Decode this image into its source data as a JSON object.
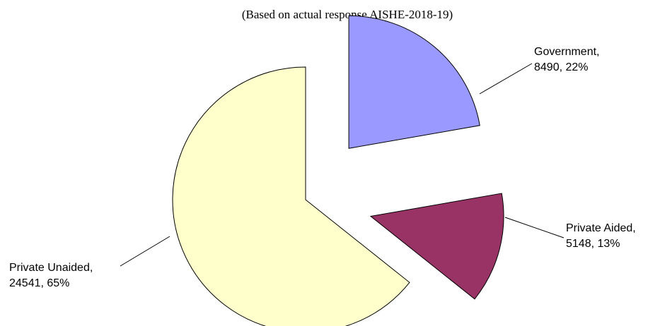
{
  "chart_data": {
    "type": "pie",
    "subtitle": "(Based on actual response AISHE-2018-19)",
    "categories": [
      "Government,",
      "Private Aided,",
      "Private Unaided,"
    ],
    "values": [
      8490,
      5148,
      24541
    ],
    "value_labels": [
      "8490, 22%",
      "5148, 13%",
      "24541, 65%"
    ],
    "colors": [
      "#9999ff",
      "#993366",
      "#ffffcc"
    ],
    "exploded": [
      true,
      true,
      false
    ]
  }
}
